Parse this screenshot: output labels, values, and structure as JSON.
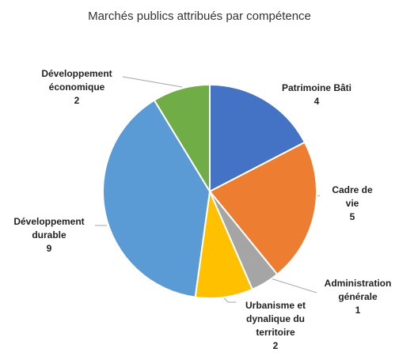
{
  "chart_data": {
    "type": "pie",
    "title": "Marchés publics attribués par compétence",
    "categories": [
      "Patrimoine Bâti",
      "Cadre de vie",
      "Administration\ngénérale",
      "Urbanisme et\ndynalique du\nterritoire",
      "Développement\ndurable",
      "Développement\néconomique"
    ],
    "values": [
      4,
      5,
      1,
      2,
      9,
      2
    ],
    "colors": [
      "#4472c4",
      "#ed7d31",
      "#a5a5a5",
      "#ffc000",
      "#5b9bd5",
      "#70ad47"
    ]
  }
}
